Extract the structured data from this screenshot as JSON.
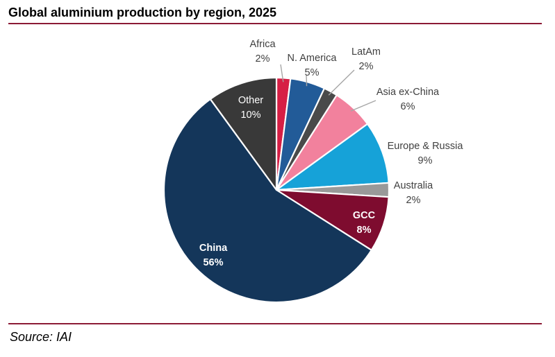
{
  "title": "Global aluminium production by region, 2025",
  "source": "Source: IAI",
  "colors": {
    "rule": "#8b1a35",
    "leader": "#a6a6a6"
  },
  "chart_data": {
    "type": "pie",
    "title": "Global aluminium production by region, 2025",
    "start": "12 o'clock",
    "direction": "clockwise",
    "slices": [
      {
        "label": "Africa",
        "value": 2,
        "value_label": "2%",
        "color": "#d61f45",
        "label_style": "outside"
      },
      {
        "label": "N. America",
        "value": 5,
        "value_label": "5%",
        "color": "#225b98",
        "label_style": "outside"
      },
      {
        "label": "LatAm",
        "value": 2,
        "value_label": "2%",
        "color": "#4a4a4a",
        "label_style": "outside"
      },
      {
        "label": "Asia ex-China",
        "value": 6,
        "value_label": "6%",
        "color": "#f2819d",
        "label_style": "outside"
      },
      {
        "label": "Europe & Russia",
        "value": 9,
        "value_label": "9%",
        "color": "#16a2d8",
        "label_style": "outside"
      },
      {
        "label": "Australia",
        "value": 2,
        "value_label": "2%",
        "color": "#999999",
        "label_style": "outside"
      },
      {
        "label": "GCC",
        "value": 8,
        "value_label": "8%",
        "color": "#7e0c2f",
        "label_style": "inside-bold-white"
      },
      {
        "label": "China",
        "value": 56,
        "value_label": "56%",
        "color": "#14365a",
        "label_style": "inside-bold-white"
      },
      {
        "label": "Other",
        "value": 10,
        "value_label": "10%",
        "color": "#393939",
        "label_style": "inside-white"
      }
    ]
  }
}
